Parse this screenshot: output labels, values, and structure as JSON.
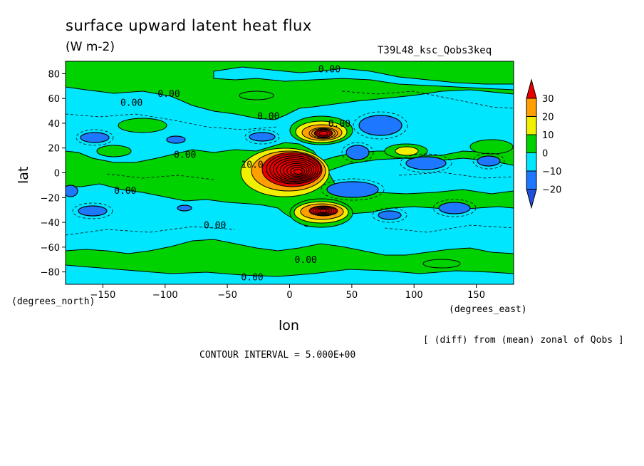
{
  "title": "surface upward latent heat flux",
  "units": "(W m-2)",
  "experiment": "T39L48_ksc_Qobs3keq",
  "x_axis_label": "lon",
  "y_axis_label": "lat",
  "x_units_note": "(degrees_east)",
  "y_units_note": "(degrees_north)",
  "diff_note": "[ (diff) from (mean) zonal of Qobs ]",
  "contour_interval": "CONTOUR INTERVAL = 5.000E+00",
  "chart_data": {
    "type": "heatmap",
    "xlim": [
      -180,
      180
    ],
    "ylim": [
      -90,
      90
    ],
    "x_ticks": [
      -150,
      -100,
      -50,
      0,
      50,
      100,
      150
    ],
    "y_ticks": [
      -80,
      -60,
      -40,
      -20,
      0,
      20,
      40,
      60,
      80
    ],
    "colorbar": {
      "levels": [
        -20,
        -10,
        0,
        10,
        20,
        30
      ],
      "colors": [
        "#1e78ff",
        "#00e6ff",
        "#00d200",
        "#f0f000",
        "#ffa000",
        "#e60000"
      ],
      "extend_low": "#1e50dc",
      "extend_high": "#e60000"
    },
    "contour_labels": [
      {
        "text": "0.00",
        "lon": 32,
        "lat": 84
      },
      {
        "text": "0.00",
        "lon": -127,
        "lat": 57
      },
      {
        "text": "0.00",
        "lon": -97,
        "lat": 64
      },
      {
        "text": "0.00",
        "lon": -17,
        "lat": 46
      },
      {
        "text": "0.00",
        "lon": 40,
        "lat": 40
      },
      {
        "text": "0.00",
        "lon": -84,
        "lat": 15
      },
      {
        "text": "10.0",
        "lon": -30,
        "lat": 7
      },
      {
        "text": "0.00",
        "lon": -132,
        "lat": -14
      },
      {
        "text": "0.00",
        "lon": -60,
        "lat": -42
      },
      {
        "text": "0.00",
        "lon": 13,
        "lat": -70
      },
      {
        "text": "0.00",
        "lon": -30,
        "lat": -84
      }
    ],
    "features": [
      {
        "kind": "dipole_high",
        "lon": 10,
        "lat": 0,
        "value": 35
      },
      {
        "kind": "high",
        "lon": 25,
        "lat": 30,
        "value": 30
      },
      {
        "kind": "high",
        "lon": 25,
        "lat": -30,
        "value": 30
      },
      {
        "kind": "high",
        "lon": 93,
        "lat": 17,
        "value": 15
      },
      {
        "kind": "low",
        "lon": 50,
        "lat": -14,
        "value": -15
      },
      {
        "kind": "low",
        "lon": 70,
        "lat": 35,
        "value": -15
      },
      {
        "kind": "low",
        "lon": 53,
        "lat": 16,
        "value": -12
      },
      {
        "kind": "low",
        "lon": 115,
        "lat": -28,
        "value": -12
      },
      {
        "kind": "low",
        "lon": 105,
        "lat": 7,
        "value": -12
      }
    ]
  }
}
